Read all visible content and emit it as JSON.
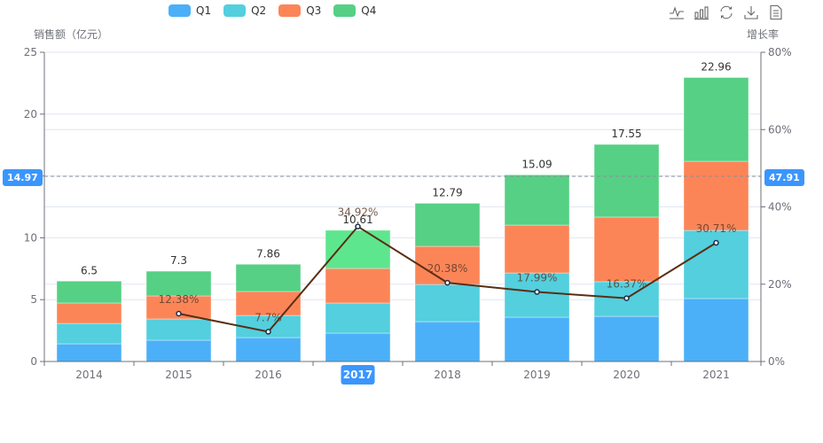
{
  "chart_data": {
    "type": "bar",
    "stacked": true,
    "categories": [
      "2014",
      "2015",
      "2016",
      "2017",
      "2018",
      "2019",
      "2020",
      "2021"
    ],
    "series": [
      {
        "name": "Q1",
        "color": "#4bb0f8",
        "values": [
          1.43,
          1.72,
          1.93,
          2.29,
          3.22,
          3.58,
          3.65,
          5.09
        ]
      },
      {
        "name": "Q2",
        "color": "#53cfde",
        "values": [
          1.65,
          1.72,
          1.79,
          2.44,
          3.01,
          3.58,
          2.8,
          5.51
        ]
      },
      {
        "name": "Q3",
        "color": "#fc8558",
        "values": [
          1.65,
          1.86,
          1.94,
          2.79,
          3.08,
          3.87,
          5.23,
          5.59
        ]
      },
      {
        "name": "Q4",
        "color": "#56d084",
        "values": [
          1.77,
          2.0,
          2.2,
          3.09,
          3.48,
          4.06,
          5.87,
          6.77
        ]
      }
    ],
    "totals": [
      "6.5",
      "7.3",
      "7.86",
      "10.61",
      "12.79",
      "15.09",
      "17.55",
      "22.96"
    ],
    "growth": {
      "name": "增长率",
      "color": "#5a2e12",
      "values": [
        null,
        12.38,
        7.7,
        34.92,
        20.38,
        17.99,
        16.37,
        30.71
      ],
      "labels": [
        "",
        "12.38%",
        "7.7%",
        "34.92%",
        "20.38%",
        "17.99%",
        "16.37%",
        "30.71%"
      ]
    },
    "ylabel_left": "销售额（亿元）",
    "ylabel_right": "增长率",
    "ylim_left": [
      0,
      25
    ],
    "yticks_left": [
      "0",
      "5",
      "10",
      "15",
      "20",
      "25"
    ],
    "ylim_right": [
      0,
      80
    ],
    "yticks_right": [
      "0%",
      "20%",
      "40%",
      "60%",
      "80%"
    ],
    "grid": true,
    "legend_position": "top",
    "axis_pointer": {
      "category": "2017",
      "left_value": "14.97",
      "right_value": "47.91"
    },
    "highlight_color": "#5ee68f"
  },
  "legend": [
    {
      "label": "Q1",
      "color": "#4bb0f8"
    },
    {
      "label": "Q2",
      "color": "#53cfde"
    },
    {
      "label": "Q3",
      "color": "#fc8558"
    },
    {
      "label": "Q4",
      "color": "#56d084"
    }
  ],
  "toolbox": [
    "line-chart-icon",
    "bar-chart-icon",
    "restore-icon",
    "download-icon",
    "data-view-icon"
  ]
}
